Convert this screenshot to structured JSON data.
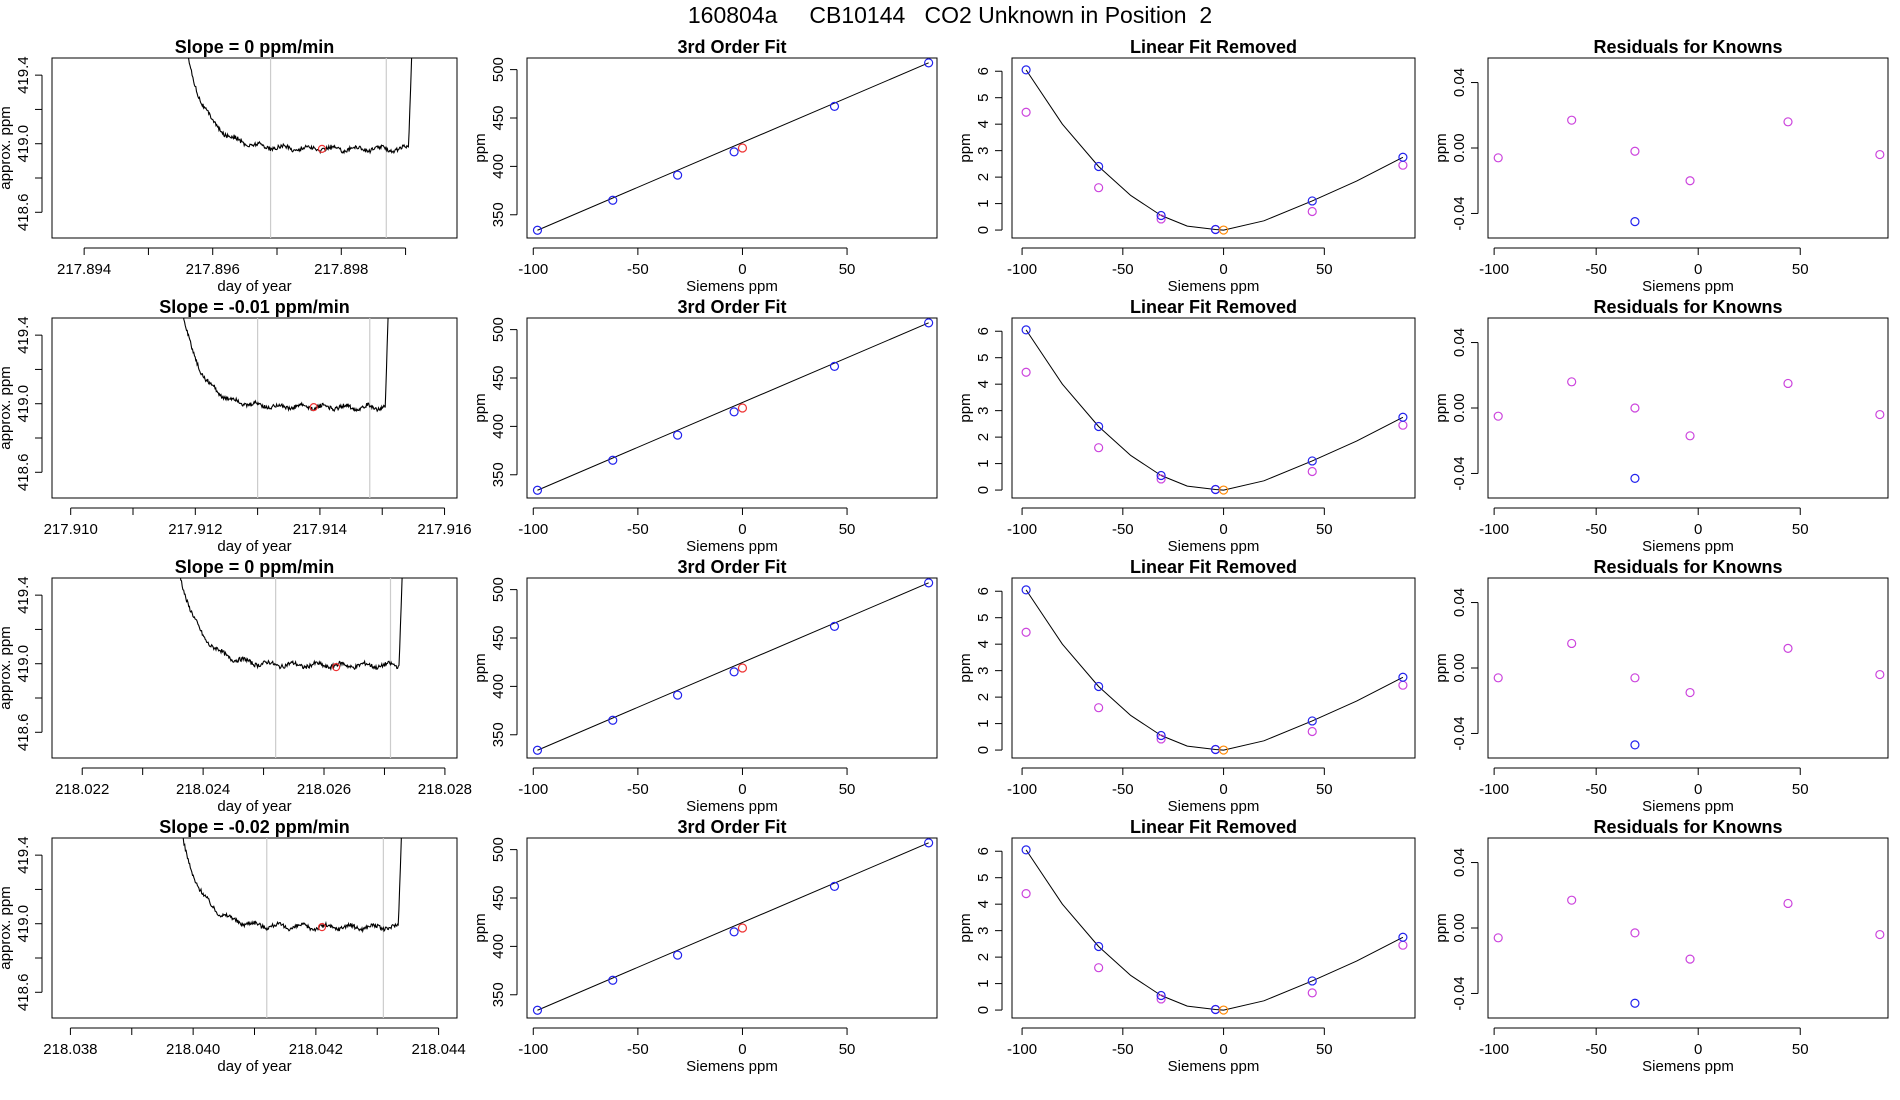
{
  "figure_title": "160804a     CB10144   CO2 Unknown in Position  2",
  "colors": {
    "trace": "#000000",
    "vline": "#cccccc",
    "known_blue": "#2222ee",
    "raw_magenta": "#cc44dd",
    "unknown_red": "#ee3333",
    "orange": "#ff8800"
  },
  "chart_data": [
    {
      "type": "line",
      "row": 1,
      "panel": "trace",
      "title": "Slope =  0  ppm/min",
      "xlabel": "day of year",
      "ylabel": "approx. ppm",
      "xlim": [
        217.8935,
        217.8998
      ],
      "ylim": [
        418.45,
        419.5
      ],
      "xticks": [
        "217.894",
        "217.896",
        "217.898"
      ],
      "yticks": [
        "418.6",
        "419.0",
        "419.4"
      ],
      "window": [
        217.8955,
        217.8991
      ],
      "plateau": 418.97,
      "vlines": [
        217.8969,
        217.8987
      ],
      "marker": {
        "x": 217.8977,
        "y": 418.97
      }
    },
    {
      "type": "scatter",
      "row": 1,
      "panel": "fit",
      "title": "3rd Order Fit",
      "xlabel": "Siemens ppm",
      "ylabel": "ppm",
      "xlim": [
        -103,
        93
      ],
      "ylim": [
        326,
        512
      ],
      "xticks": [
        "-100",
        "-50",
        "0",
        "50"
      ],
      "yticks": [
        "350",
        "400",
        "450",
        "500"
      ],
      "knowns": {
        "x": [
          -98,
          -62,
          -31,
          -4,
          44,
          89
        ],
        "y": [
          334,
          365,
          391,
          415,
          462,
          507
        ]
      },
      "unknown": {
        "x": [
          0
        ],
        "y": [
          419
        ]
      },
      "fit_line": {
        "x": [
          -98,
          89
        ],
        "y": [
          334,
          507
        ]
      }
    },
    {
      "type": "scatter",
      "row": 1,
      "panel": "linear_removed",
      "title": "Linear Fit Removed",
      "xlabel": "Siemens ppm",
      "ylabel": "ppm",
      "xlim": [
        -105,
        95
      ],
      "ylim": [
        -0.3,
        6.5
      ],
      "xticks": [
        "-100",
        "-50",
        "0",
        "50"
      ],
      "yticks": [
        "0",
        "1",
        "2",
        "3",
        "4",
        "5",
        "6"
      ],
      "knowns": {
        "x": [
          -98,
          -62,
          -31,
          -4,
          44,
          89
        ],
        "y": [
          6.05,
          2.4,
          0.55,
          0.02,
          1.1,
          2.75
        ]
      },
      "raw": {
        "x": [
          -98,
          -62,
          -31,
          -4,
          44,
          89
        ],
        "y": [
          4.45,
          1.6,
          0.42,
          0.02,
          0.7,
          2.45
        ]
      },
      "unknown": {
        "x": [
          0
        ],
        "y": [
          0
        ]
      }
    },
    {
      "type": "scatter",
      "row": 1,
      "panel": "residuals",
      "title": "Residuals for Knowns",
      "xlabel": "Siemens ppm",
      "ylabel": "ppm",
      "xlim": [
        -103,
        93
      ],
      "ylim": [
        -0.055,
        0.055
      ],
      "xticks": [
        "-100",
        "-50",
        "0",
        "50"
      ],
      "yticks": [
        "-0.04",
        "0.00",
        "0.04"
      ],
      "magenta": {
        "x": [
          -98,
          -62,
          -31,
          -4,
          44,
          89
        ],
        "y": [
          -0.006,
          0.017,
          -0.002,
          -0.02,
          0.016,
          -0.004
        ]
      },
      "blue": {
        "x": [
          -31
        ],
        "y": [
          -0.045
        ]
      }
    },
    {
      "type": "line",
      "row": 2,
      "panel": "trace",
      "title": "Slope =  -0.01  ppm/min",
      "xlabel": "day of year",
      "ylabel": "approx. ppm",
      "xlim": [
        217.9097,
        217.9162
      ],
      "ylim": [
        418.45,
        419.5
      ],
      "xticks": [
        "217.910",
        "217.912",
        "217.914",
        "217.916"
      ],
      "yticks": [
        "418.6",
        "419.0",
        "419.4"
      ],
      "window": [
        217.9117,
        217.9151
      ],
      "plateau": 418.98,
      "vlines": [
        217.913,
        217.9148
      ],
      "marker": {
        "x": 217.9139,
        "y": 418.98
      }
    },
    {
      "type": "scatter",
      "row": 2,
      "panel": "fit",
      "title": "3rd Order Fit",
      "xlabel": "Siemens ppm",
      "ylabel": "ppm",
      "xlim": [
        -103,
        93
      ],
      "ylim": [
        326,
        512
      ],
      "xticks": [
        "-100",
        "-50",
        "0",
        "50"
      ],
      "yticks": [
        "350",
        "400",
        "450",
        "500"
      ],
      "knowns": {
        "x": [
          -98,
          -62,
          -31,
          -4,
          44,
          89
        ],
        "y": [
          334,
          365,
          391,
          415,
          462,
          507
        ]
      },
      "unknown": {
        "x": [
          0
        ],
        "y": [
          419
        ]
      },
      "fit_line": {
        "x": [
          -98,
          89
        ],
        "y": [
          334,
          507
        ]
      }
    },
    {
      "type": "scatter",
      "row": 2,
      "panel": "linear_removed",
      "title": "Linear Fit Removed",
      "xlabel": "Siemens ppm",
      "ylabel": "ppm",
      "xlim": [
        -105,
        95
      ],
      "ylim": [
        -0.3,
        6.5
      ],
      "xticks": [
        "-100",
        "-50",
        "0",
        "50"
      ],
      "yticks": [
        "0",
        "1",
        "2",
        "3",
        "4",
        "5",
        "6"
      ],
      "knowns": {
        "x": [
          -98,
          -62,
          -31,
          -4,
          44,
          89
        ],
        "y": [
          6.05,
          2.4,
          0.55,
          0.02,
          1.1,
          2.75
        ]
      },
      "raw": {
        "x": [
          -98,
          -62,
          -31,
          -4,
          44,
          89
        ],
        "y": [
          4.45,
          1.6,
          0.42,
          0.02,
          0.7,
          2.45
        ]
      },
      "unknown": {
        "x": [
          0
        ],
        "y": [
          0
        ]
      }
    },
    {
      "type": "scatter",
      "row": 2,
      "panel": "residuals",
      "title": "Residuals for Knowns",
      "xlabel": "Siemens ppm",
      "ylabel": "ppm",
      "xlim": [
        -103,
        93
      ],
      "ylim": [
        -0.055,
        0.055
      ],
      "xticks": [
        "-100",
        "-50",
        "0",
        "50"
      ],
      "yticks": [
        "-0.04",
        "0.00",
        "0.04"
      ],
      "magenta": {
        "x": [
          -98,
          -62,
          -31,
          -4,
          44,
          89
        ],
        "y": [
          -0.005,
          0.016,
          0.0,
          -0.017,
          0.015,
          -0.004
        ]
      },
      "blue": {
        "x": [
          -31
        ],
        "y": [
          -0.043
        ]
      }
    },
    {
      "type": "line",
      "row": 3,
      "panel": "trace",
      "title": "Slope =  0  ppm/min",
      "xlabel": "day of year",
      "ylabel": "approx. ppm",
      "xlim": [
        218.0215,
        218.0282
      ],
      "ylim": [
        418.45,
        419.5
      ],
      "xticks": [
        "218.022",
        "218.024",
        "218.026",
        "218.028"
      ],
      "yticks": [
        "418.6",
        "419.0",
        "419.4"
      ],
      "window": [
        218.0235,
        218.0273
      ],
      "plateau": 418.99,
      "vlines": [
        218.0252,
        218.0271
      ],
      "marker": {
        "x": 218.0262,
        "y": 418.98
      }
    },
    {
      "type": "scatter",
      "row": 3,
      "panel": "fit",
      "title": "3rd Order Fit",
      "xlabel": "Siemens ppm",
      "ylabel": "ppm",
      "xlim": [
        -103,
        93
      ],
      "ylim": [
        326,
        512
      ],
      "xticks": [
        "-100",
        "-50",
        "0",
        "50"
      ],
      "yticks": [
        "350",
        "400",
        "450",
        "500"
      ],
      "knowns": {
        "x": [
          -98,
          -62,
          -31,
          -4,
          44,
          89
        ],
        "y": [
          334,
          365,
          391,
          415,
          462,
          507
        ]
      },
      "unknown": {
        "x": [
          0
        ],
        "y": [
          419
        ]
      },
      "fit_line": {
        "x": [
          -98,
          89
        ],
        "y": [
          334,
          507
        ]
      }
    },
    {
      "type": "scatter",
      "row": 3,
      "panel": "linear_removed",
      "title": "Linear Fit Removed",
      "xlabel": "Siemens ppm",
      "ylabel": "ppm",
      "xlim": [
        -105,
        95
      ],
      "ylim": [
        -0.3,
        6.5
      ],
      "xticks": [
        "-100",
        "-50",
        "0",
        "50"
      ],
      "yticks": [
        "0",
        "1",
        "2",
        "3",
        "4",
        "5",
        "6"
      ],
      "knowns": {
        "x": [
          -98,
          -62,
          -31,
          -4,
          44,
          89
        ],
        "y": [
          6.05,
          2.4,
          0.55,
          0.02,
          1.1,
          2.75
        ]
      },
      "raw": {
        "x": [
          -98,
          -62,
          -31,
          -4,
          44,
          89
        ],
        "y": [
          4.45,
          1.6,
          0.42,
          0.02,
          0.7,
          2.45
        ]
      },
      "unknown": {
        "x": [
          0
        ],
        "y": [
          0
        ]
      }
    },
    {
      "type": "scatter",
      "row": 3,
      "panel": "residuals",
      "title": "Residuals for Knowns",
      "xlabel": "Siemens ppm",
      "ylabel": "ppm",
      "xlim": [
        -103,
        93
      ],
      "ylim": [
        -0.055,
        0.055
      ],
      "xticks": [
        "-100",
        "-50",
        "0",
        "50"
      ],
      "yticks": [
        "-0.04",
        "0.00",
        "0.04"
      ],
      "magenta": {
        "x": [
          -98,
          -62,
          -31,
          -4,
          44,
          89
        ],
        "y": [
          -0.006,
          0.015,
          -0.006,
          -0.015,
          0.012,
          -0.004
        ]
      },
      "blue": {
        "x": [
          -31
        ],
        "y": [
          -0.047
        ]
      }
    },
    {
      "type": "line",
      "row": 4,
      "panel": "trace",
      "title": "Slope =  -0.02  ppm/min",
      "xlabel": "day of year",
      "ylabel": "approx. ppm",
      "xlim": [
        218.0377,
        218.0443
      ],
      "ylim": [
        418.45,
        419.5
      ],
      "xticks": [
        "218.038",
        "218.040",
        "218.042",
        "218.044"
      ],
      "yticks": [
        "418.6",
        "419.0",
        "419.4"
      ],
      "window": [
        218.0397,
        218.0434
      ],
      "plateau": 418.98,
      "vlines": [
        218.0412,
        218.0431
      ],
      "marker": {
        "x": 218.0421,
        "y": 418.98
      }
    },
    {
      "type": "scatter",
      "row": 4,
      "panel": "fit",
      "title": "3rd Order Fit",
      "xlabel": "Siemens ppm",
      "ylabel": "ppm",
      "xlim": [
        -103,
        93
      ],
      "ylim": [
        326,
        512
      ],
      "xticks": [
        "-100",
        "-50",
        "0",
        "50"
      ],
      "yticks": [
        "350",
        "400",
        "450",
        "500"
      ],
      "knowns": {
        "x": [
          -98,
          -62,
          -31,
          -4,
          44,
          89
        ],
        "y": [
          334,
          365,
          391,
          415,
          462,
          507
        ]
      },
      "unknown": {
        "x": [
          0
        ],
        "y": [
          419
        ]
      },
      "fit_line": {
        "x": [
          -98,
          89
        ],
        "y": [
          334,
          507
        ]
      }
    },
    {
      "type": "scatter",
      "row": 4,
      "panel": "linear_removed",
      "title": "Linear Fit Removed",
      "xlabel": "Siemens ppm",
      "ylabel": "ppm",
      "xlim": [
        -105,
        95
      ],
      "ylim": [
        -0.3,
        6.5
      ],
      "xticks": [
        "-100",
        "-50",
        "0",
        "50"
      ],
      "yticks": [
        "0",
        "1",
        "2",
        "3",
        "4",
        "5",
        "6"
      ],
      "knowns": {
        "x": [
          -98,
          -62,
          -31,
          -4,
          44,
          89
        ],
        "y": [
          6.05,
          2.4,
          0.55,
          0.02,
          1.1,
          2.75
        ]
      },
      "raw": {
        "x": [
          -98,
          -62,
          -31,
          -4,
          44,
          89
        ],
        "y": [
          4.4,
          1.6,
          0.42,
          0.02,
          0.65,
          2.45
        ]
      },
      "unknown": {
        "x": [
          0
        ],
        "y": [
          0
        ]
      }
    },
    {
      "type": "scatter",
      "row": 4,
      "panel": "residuals",
      "title": "Residuals for Knowns",
      "xlabel": "Siemens ppm",
      "ylabel": "ppm",
      "xlim": [
        -103,
        93
      ],
      "ylim": [
        -0.055,
        0.055
      ],
      "xticks": [
        "-100",
        "-50",
        "0",
        "50"
      ],
      "yticks": [
        "-0.04",
        "0.00",
        "0.04"
      ],
      "magenta": {
        "x": [
          -98,
          -62,
          -31,
          -4,
          44,
          89
        ],
        "y": [
          -0.006,
          0.017,
          -0.003,
          -0.019,
          0.015,
          -0.004
        ]
      },
      "blue": {
        "x": [
          -31
        ],
        "y": [
          -0.046
        ]
      }
    }
  ]
}
